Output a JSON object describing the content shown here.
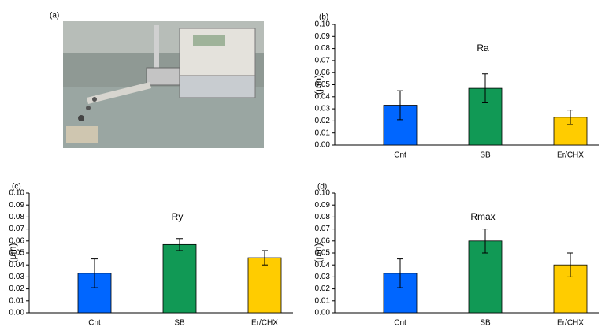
{
  "photo_panel": {
    "label": "(a)"
  },
  "chart_data": [
    {
      "type": "bar",
      "panel_label": "(b)",
      "title": "Ra",
      "y_label": "(µm)",
      "categories": [
        "Cnt",
        "SB",
        "Er/CHX"
      ],
      "values": [
        0.033,
        0.047,
        0.023
      ],
      "errors": [
        0.012,
        0.012,
        0.006
      ],
      "colors": [
        "#0066ff",
        "#119955",
        "#ffcc00"
      ],
      "ylim": [
        0,
        0.1
      ],
      "yticks": [
        {
          "value": 0,
          "label": "0.00"
        },
        0.01,
        0.02,
        0.03,
        0.04,
        0.05,
        0.06,
        0.07,
        0.08,
        0.09,
        {
          "value": 0.1,
          "label": "0.10"
        }
      ]
    },
    {
      "type": "bar",
      "panel_label": "(c)",
      "title": "Ry",
      "y_label": "(µm)",
      "categories": [
        "Cnt",
        "SB",
        "Er/CHX"
      ],
      "values": [
        0.033,
        0.057,
        0.046
      ],
      "errors": [
        0.012,
        0.005,
        0.006
      ],
      "colors": [
        "#0066ff",
        "#119955",
        "#ffcc00"
      ],
      "ylim": [
        0,
        0.1
      ],
      "yticks": [
        {
          "value": 0,
          "label": "0.00"
        },
        0.01,
        0.02,
        0.03,
        0.04,
        0.05,
        0.06,
        0.07,
        0.08,
        0.09,
        {
          "value": 0.1,
          "label": "0.10"
        }
      ]
    },
    {
      "type": "bar",
      "panel_label": "(d)",
      "title": "Rmax",
      "y_label": "(µm)",
      "categories": [
        "Cnt",
        "SB",
        "Er/CHX"
      ],
      "values": [
        0.033,
        0.06,
        0.04
      ],
      "errors": [
        0.012,
        0.01,
        0.01
      ],
      "colors": [
        "#0066ff",
        "#119955",
        "#ffcc00"
      ],
      "ylim": [
        0,
        0.1
      ],
      "yticks": [
        {
          "value": 0,
          "label": "0.00"
        },
        0.01,
        0.02,
        0.03,
        0.04,
        0.05,
        0.06,
        0.07,
        0.08,
        0.09,
        {
          "value": 0.1,
          "label": "0.10"
        }
      ]
    }
  ]
}
